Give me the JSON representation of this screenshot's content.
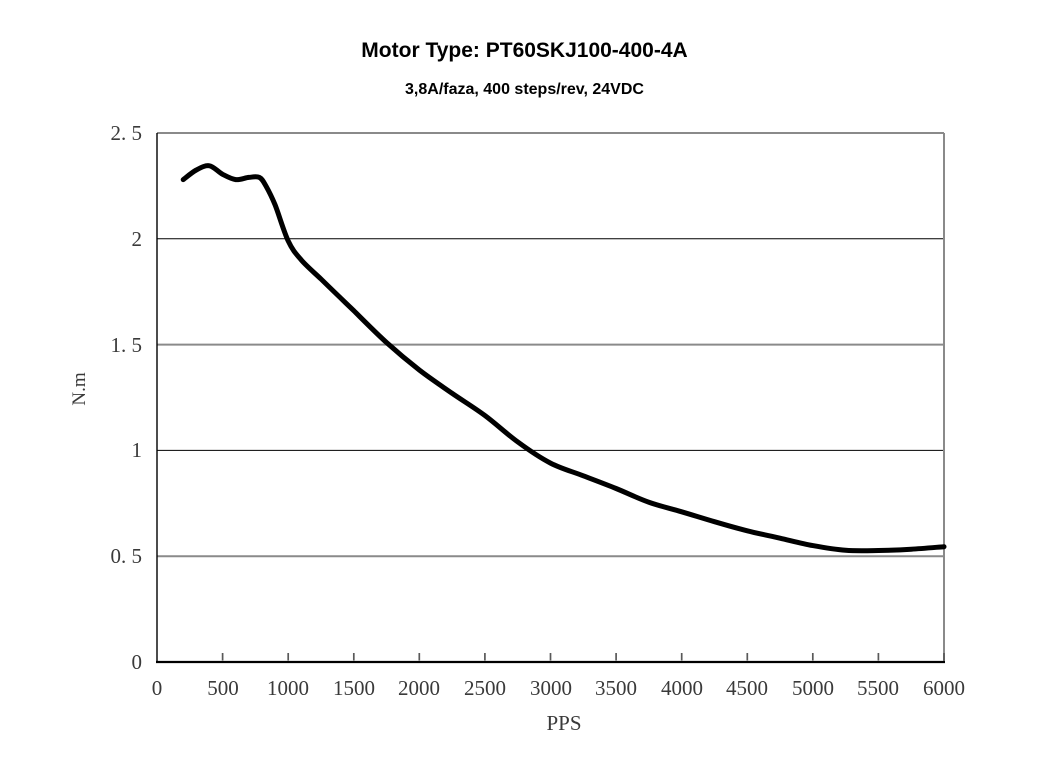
{
  "chart_data": {
    "type": "line",
    "title": "Motor Type: PT60SKJ100-400-4A",
    "subtitle": "3,8A/faza, 400 steps/rev, 24VDC",
    "xlabel": "PPS",
    "ylabel": "N.m",
    "xlim": [
      0,
      6000
    ],
    "ylim": [
      0,
      2.5
    ],
    "grid": "horizontal-only",
    "legend": "none",
    "x_ticks": [
      {
        "value": 0,
        "label": "0"
      },
      {
        "value": 500,
        "label": "500"
      },
      {
        "value": 1000,
        "label": "1000"
      },
      {
        "value": 1500,
        "label": "1500"
      },
      {
        "value": 2000,
        "label": "2000"
      },
      {
        "value": 2500,
        "label": "2500"
      },
      {
        "value": 3000,
        "label": "3000"
      },
      {
        "value": 3500,
        "label": "3500"
      },
      {
        "value": 4000,
        "label": "4000"
      },
      {
        "value": 4500,
        "label": "4500"
      },
      {
        "value": 5000,
        "label": "5000"
      },
      {
        "value": 5500,
        "label": "5500"
      },
      {
        "value": 6000,
        "label": "6000"
      }
    ],
    "y_ticks": [
      {
        "value": 0,
        "label": "0"
      },
      {
        "value": 0.5,
        "label": "0. 5"
      },
      {
        "value": 1,
        "label": "1"
      },
      {
        "value": 1.5,
        "label": "1. 5"
      },
      {
        "value": 2,
        "label": "2"
      },
      {
        "value": 2.5,
        "label": "2. 5"
      }
    ],
    "series": [
      {
        "x": [
          200,
          300,
          400,
          500,
          600,
          700,
          780,
          830,
          900,
          1000,
          1100,
          1250,
          1400,
          1500,
          1750,
          2000,
          2250,
          2500,
          2750,
          3000,
          3250,
          3500,
          3750,
          4000,
          4250,
          4500,
          4750,
          5000,
          5250,
          5500,
          5750,
          6000
        ],
        "y": [
          2.28,
          2.325,
          2.345,
          2.305,
          2.28,
          2.29,
          2.29,
          2.25,
          2.16,
          1.99,
          1.9,
          1.81,
          1.72,
          1.66,
          1.51,
          1.38,
          1.27,
          1.165,
          1.04,
          0.94,
          0.88,
          0.82,
          0.755,
          0.71,
          0.663,
          0.62,
          0.585,
          0.55,
          0.528,
          0.527,
          0.533,
          0.545
        ],
        "color": "#000000",
        "stroke_width": 5
      }
    ],
    "style": {
      "background": "#ffffff",
      "title_color": "#000000",
      "tick_label_color": "#3a3a3a",
      "axis_color": "#000000",
      "gray_grid_color": "#8a8a8a",
      "black_grid_color": "#000000",
      "tick_mark_color": "#595959",
      "gridlines": [
        {
          "value": 2.5,
          "color": "#8a8a8a",
          "width": 2
        },
        {
          "value": 2.0,
          "color": "#000000",
          "width": 1
        },
        {
          "value": 1.5,
          "color": "#8a8a8a",
          "width": 2
        },
        {
          "value": 1.0,
          "color": "#000000",
          "width": 1
        },
        {
          "value": 0.5,
          "color": "#8a8a8a",
          "width": 2
        }
      ]
    }
  }
}
